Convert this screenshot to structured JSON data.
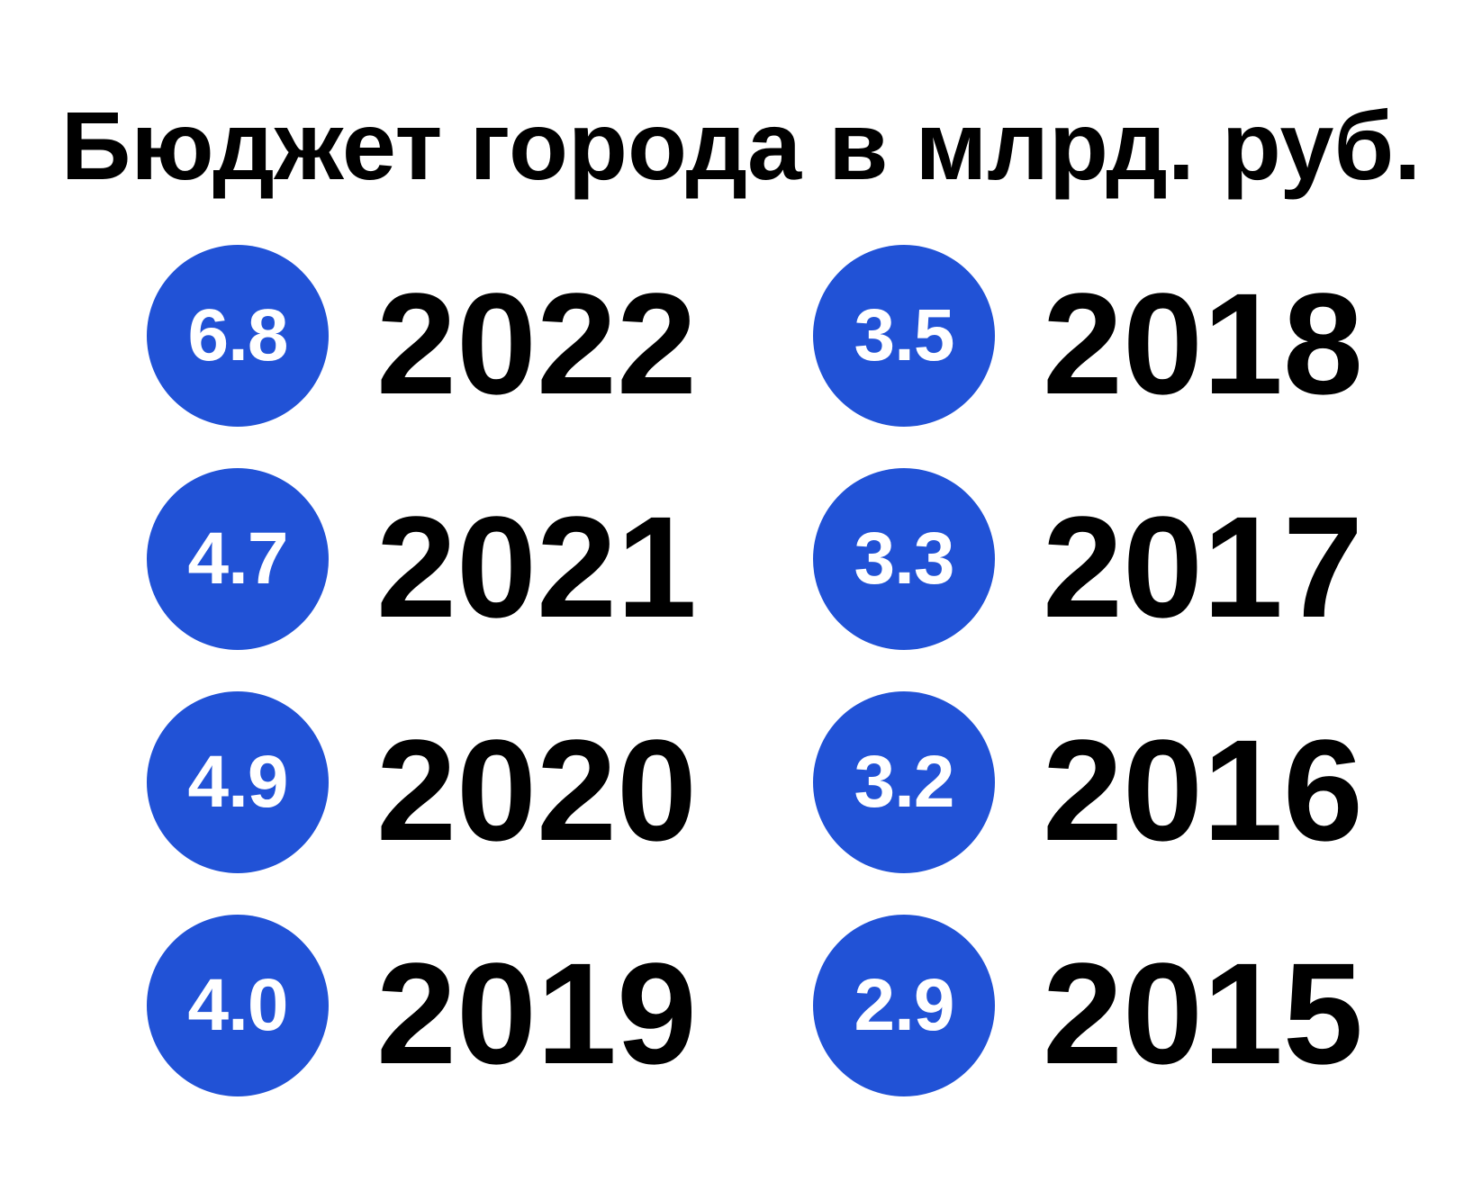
{
  "chart_data": {
    "type": "table",
    "title": "Бюджет города в млрд. руб.",
    "columns": [
      {
        "rows": [
          {
            "year": "2022",
            "value": "6.8"
          },
          {
            "year": "2021",
            "value": "4.7"
          },
          {
            "year": "2020",
            "value": "4.9"
          },
          {
            "year": "2019",
            "value": "4.0"
          }
        ]
      },
      {
        "rows": [
          {
            "year": "2018",
            "value": "3.5"
          },
          {
            "year": "2017",
            "value": "3.3"
          },
          {
            "year": "2016",
            "value": "3.2"
          },
          {
            "year": "2015",
            "value": "2.9"
          }
        ]
      }
    ],
    "colors": {
      "badge": "#2152d6",
      "badge_text": "#ffffff",
      "text": "#000000"
    }
  }
}
